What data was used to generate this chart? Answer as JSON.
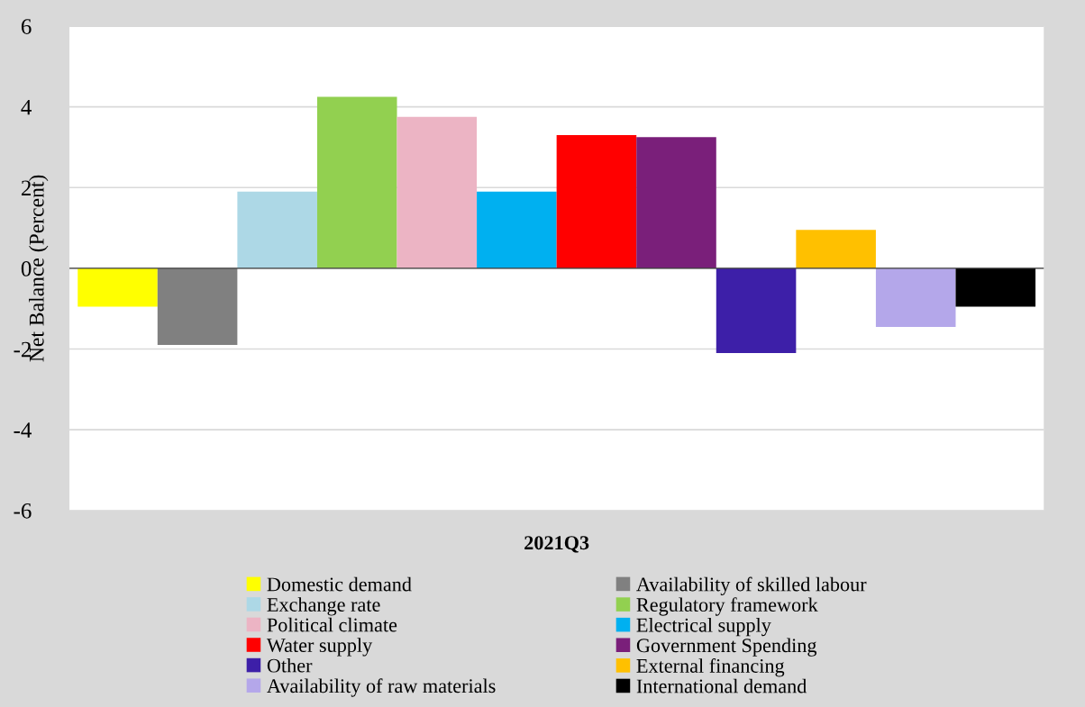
{
  "chart_data": {
    "type": "bar",
    "ylabel": "Net Balance (Percent)",
    "categories": [
      "2021Q3"
    ],
    "series": [
      {
        "name": "Domestic demand",
        "color": "#ffff00",
        "values": [
          -0.95
        ]
      },
      {
        "name": "Availability of skilled labour",
        "color": "#808080",
        "values": [
          -1.9
        ]
      },
      {
        "name": "Exchange rate",
        "color": "#add8e6",
        "values": [
          1.9
        ]
      },
      {
        "name": "Regulatory framework",
        "color": "#92d050",
        "values": [
          4.25
        ]
      },
      {
        "name": "Political climate",
        "color": "#ecb4c4",
        "values": [
          3.75
        ]
      },
      {
        "name": "Electrical supply",
        "color": "#00b0f0",
        "values": [
          1.9
        ]
      },
      {
        "name": "Water supply",
        "color": "#ff0000",
        "values": [
          3.3
        ]
      },
      {
        "name": "Government Spending",
        "color": "#7a1f7a",
        "values": [
          3.25
        ]
      },
      {
        "name": "Other",
        "color": "#3d1fa8",
        "values": [
          -2.1
        ]
      },
      {
        "name": "External financing",
        "color": "#ffc000",
        "values": [
          0.95
        ]
      },
      {
        "name": "Availability of raw materials",
        "color": "#b4a7ea",
        "values": [
          -1.45
        ]
      },
      {
        "name": "International demand",
        "color": "#000000",
        "values": [
          -0.95
        ]
      }
    ],
    "ylim": [
      -6,
      6
    ],
    "yticks": [
      -6,
      -4,
      -2,
      0,
      2,
      4,
      6
    ],
    "grid": "y",
    "legend": "bottom"
  }
}
